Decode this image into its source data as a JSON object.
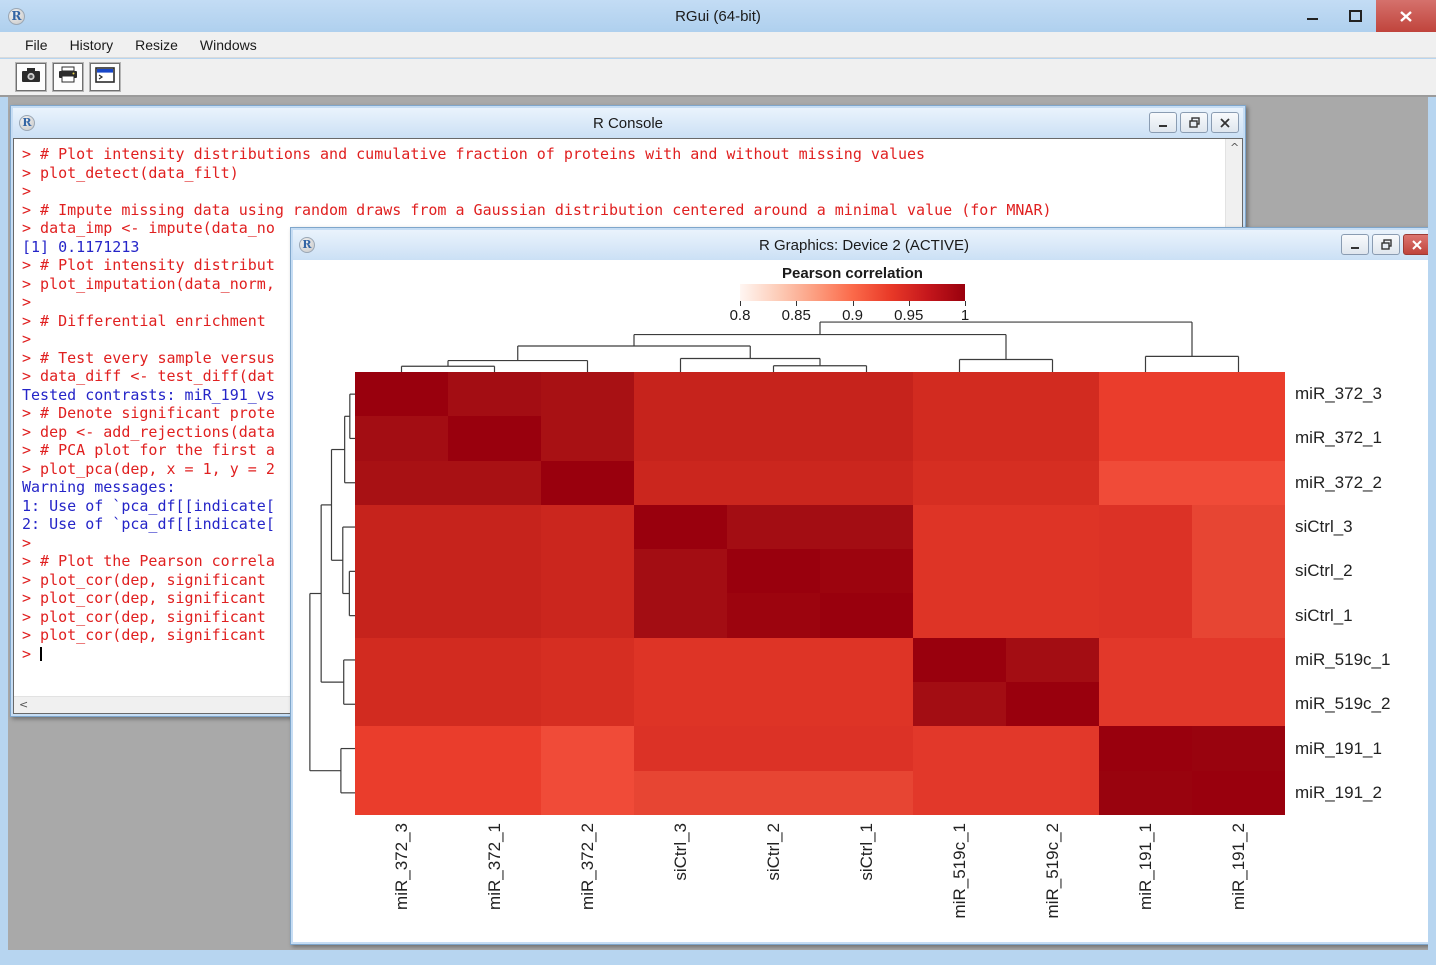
{
  "theme": {
    "titlebar_blue": "#B7D5F0",
    "mdi_gray": "#A9A9A9",
    "close_red": "#C0443C",
    "console_input_red": "#E02020",
    "console_output_blue": "#2525C8",
    "dendrogram_color": "#3C3C3C"
  },
  "app": {
    "title": "RGui (64-bit)",
    "logo": "R",
    "menu": [
      "File",
      "History",
      "Resize",
      "Windows"
    ],
    "toolbar": [
      {
        "icon": "camera-icon"
      },
      {
        "icon": "printer-icon"
      },
      {
        "icon": "console-window-icon"
      }
    ],
    "window_controls": [
      "minimize",
      "maximize",
      "close"
    ]
  },
  "console": {
    "title": "R Console",
    "scroll_up_glyph": "▲",
    "scroll_left_glyph": "◄",
    "lines": [
      {
        "text": "> # Plot intensity distributions and cumulative fraction of proteins with and without missing values",
        "color": "red"
      },
      {
        "text": "> plot_detect(data_filt)",
        "color": "red"
      },
      {
        "text": ">",
        "color": "red"
      },
      {
        "text": "> # Impute missing data using random draws from a Gaussian distribution centered around a minimal value (for MNAR)",
        "color": "red"
      },
      {
        "text": "> data_imp <- impute(data_no",
        "color": "red"
      },
      {
        "text": "[1] 0.1171213",
        "color": "blue"
      },
      {
        "text": "> # Plot intensity distribut",
        "color": "red"
      },
      {
        "text": "> plot_imputation(data_norm,",
        "color": "red"
      },
      {
        "text": ">",
        "color": "red"
      },
      {
        "text": "> # Differential enrichment",
        "color": "red"
      },
      {
        "text": ">",
        "color": "red"
      },
      {
        "text": "> # Test every sample versus",
        "color": "red"
      },
      {
        "text": "> data_diff <- test_diff(dat",
        "color": "red"
      },
      {
        "text": "Tested contrasts: miR_191_vs",
        "color": "blue"
      },
      {
        "text": "> # Denote significant prote",
        "color": "red"
      },
      {
        "text": "> dep <- add_rejections(data",
        "color": "red"
      },
      {
        "text": "> # PCA plot for the first a",
        "color": "red"
      },
      {
        "text": "> plot_pca(dep, x = 1, y = 2",
        "color": "red"
      },
      {
        "text": "Warning messages:",
        "color": "blue"
      },
      {
        "text": "1: Use of `pca_df[[indicate[",
        "color": "blue"
      },
      {
        "text": "2: Use of `pca_df[[indicate[",
        "color": "blue"
      },
      {
        "text": ">",
        "color": "red"
      },
      {
        "text": "> # Plot the Pearson correla",
        "color": "red"
      },
      {
        "text": "> plot_cor(dep, significant",
        "color": "red"
      },
      {
        "text": "> plot_cor(dep, significant",
        "color": "red"
      },
      {
        "text": "> plot_cor(dep, significant",
        "color": "red"
      },
      {
        "text": "> plot_cor(dep, significant",
        "color": "red"
      },
      {
        "text": "> ",
        "color": "red",
        "cursor": true
      }
    ]
  },
  "graphics": {
    "title": "R Graphics: Device 2 (ACTIVE)",
    "window_controls": [
      "minimize",
      "restore",
      "close"
    ]
  },
  "chart_data": {
    "type": "heatmap",
    "title": "Pearson correlation",
    "legend": {
      "title": "Pearson correlation",
      "ticks": [
        "0.8",
        "0.85",
        "0.9",
        "0.95",
        "1"
      ],
      "range": [
        0.8,
        1
      ],
      "gradient": [
        "#FFF6F2",
        "#FDCDB9",
        "#FC9E80",
        "#FB6A4A",
        "#E93A28",
        "#C5171C",
        "#99000D"
      ]
    },
    "labels": [
      "miR_372_3",
      "miR_372_1",
      "miR_372_2",
      "siCtrl_3",
      "siCtrl_2",
      "siCtrl_1",
      "miR_519c_1",
      "miR_519c_2",
      "miR_191_1",
      "miR_191_2"
    ],
    "values": [
      [
        1.0,
        0.98,
        0.975,
        0.955,
        0.955,
        0.955,
        0.945,
        0.945,
        0.925,
        0.925
      ],
      [
        0.98,
        1.0,
        0.975,
        0.955,
        0.955,
        0.955,
        0.945,
        0.945,
        0.925,
        0.925
      ],
      [
        0.975,
        0.975,
        1.0,
        0.95,
        0.95,
        0.95,
        0.94,
        0.94,
        0.91,
        0.91
      ],
      [
        0.955,
        0.955,
        0.95,
        1.0,
        0.98,
        0.98,
        0.935,
        0.935,
        0.935,
        0.92
      ],
      [
        0.955,
        0.955,
        0.95,
        0.98,
        1.0,
        0.99,
        0.935,
        0.935,
        0.935,
        0.92
      ],
      [
        0.955,
        0.955,
        0.95,
        0.98,
        0.99,
        1.0,
        0.935,
        0.935,
        0.935,
        0.92
      ],
      [
        0.945,
        0.945,
        0.94,
        0.935,
        0.935,
        0.935,
        1.0,
        0.98,
        0.93,
        0.93
      ],
      [
        0.945,
        0.945,
        0.94,
        0.935,
        0.935,
        0.935,
        0.98,
        1.0,
        0.93,
        0.93
      ],
      [
        0.925,
        0.925,
        0.91,
        0.935,
        0.935,
        0.935,
        0.93,
        0.93,
        1.0,
        0.99
      ],
      [
        0.925,
        0.925,
        0.91,
        0.92,
        0.92,
        0.92,
        0.93,
        0.93,
        0.99,
        1.0
      ]
    ],
    "cell_colors": [
      [
        "#99000D",
        "#A30D13",
        "#A81114",
        "#C6231C",
        "#C6231C",
        "#C6231C",
        "#D22B20",
        "#D22B20",
        "#EA3D2C",
        "#EA3D2C"
      ],
      [
        "#A30D13",
        "#99000D",
        "#A81114",
        "#C6231C",
        "#C6231C",
        "#C6231C",
        "#D22B20",
        "#D22B20",
        "#EA3D2C",
        "#EA3D2C"
      ],
      [
        "#A81114",
        "#A81114",
        "#99000D",
        "#CB261E",
        "#CB261E",
        "#CB261E",
        "#D62E22",
        "#D62E22",
        "#F04B38",
        "#F04B38"
      ],
      [
        "#C6231C",
        "#C6231C",
        "#CB261E",
        "#99000D",
        "#A30D13",
        "#A30D13",
        "#DE3426",
        "#DE3426",
        "#DC3226",
        "#E74533"
      ],
      [
        "#C6231C",
        "#C6231C",
        "#CB261E",
        "#A30D13",
        "#99000D",
        "#9C040E",
        "#DE3426",
        "#DE3426",
        "#DC3226",
        "#E74533"
      ],
      [
        "#C6231C",
        "#C6231C",
        "#CB261E",
        "#A30D13",
        "#9C040E",
        "#99000D",
        "#DE3426",
        "#DE3426",
        "#DC3226",
        "#E74533"
      ],
      [
        "#D22B20",
        "#D22B20",
        "#D62E22",
        "#DE3426",
        "#DE3426",
        "#DE3426",
        "#99000D",
        "#A30D13",
        "#E2382A",
        "#E2382A"
      ],
      [
        "#D22B20",
        "#D22B20",
        "#D62E22",
        "#DE3426",
        "#DE3426",
        "#DE3426",
        "#A30D13",
        "#99000D",
        "#E2382A",
        "#E2382A"
      ],
      [
        "#EA3D2C",
        "#EA3D2C",
        "#F04B38",
        "#DC3226",
        "#DC3226",
        "#DC3226",
        "#E2382A",
        "#E2382A",
        "#99000D",
        "#99030E"
      ],
      [
        "#EA3D2C",
        "#EA3D2C",
        "#F04B38",
        "#E74533",
        "#E74533",
        "#E74533",
        "#E2382A",
        "#E2382A",
        "#99030E",
        "#99000D"
      ]
    ],
    "col_tree": {
      "h": 0.96,
      "c": [
        {
          "h": 0.72,
          "c": [
            {
              "h": 0.5,
              "c": [
                {
                  "h": 0.22,
                  "c": [
                    {
                      "h": 0.11,
                      "c": [
                        0,
                        1
                      ]
                    },
                    2
                  ]
                },
                {
                  "h": 0.26,
                  "c": [
                    3,
                    {
                      "h": 0.12,
                      "c": [
                        4,
                        5
                      ]
                    }
                  ]
                }
              ]
            },
            {
              "h": 0.24,
              "c": [
                6,
                7
              ]
            }
          ]
        },
        {
          "h": 0.3,
          "c": [
            8,
            9
          ]
        }
      ]
    },
    "row_tree": {
      "h": 0.96,
      "c": [
        {
          "h": 0.72,
          "c": [
            {
              "h": 0.5,
              "c": [
                {
                  "h": 0.22,
                  "c": [
                    {
                      "h": 0.11,
                      "c": [
                        0,
                        1
                      ]
                    },
                    2
                  ]
                },
                {
                  "h": 0.26,
                  "c": [
                    3,
                    {
                      "h": 0.12,
                      "c": [
                        4,
                        5
                      ]
                    }
                  ]
                }
              ]
            },
            {
              "h": 0.24,
              "c": [
                6,
                7
              ]
            }
          ]
        },
        {
          "h": 0.3,
          "c": [
            8,
            9
          ]
        }
      ]
    },
    "layout": {
      "legend_position": "top",
      "row_labels": "right",
      "col_labels": "bottom-rotated"
    }
  }
}
